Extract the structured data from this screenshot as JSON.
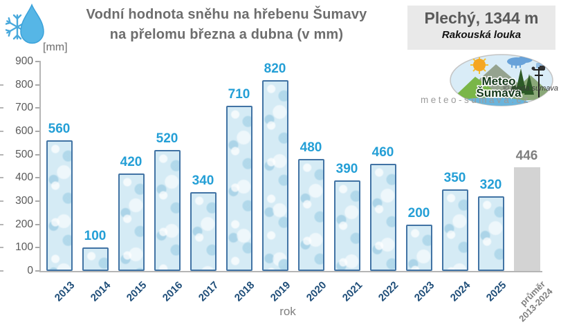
{
  "header": {
    "station": "Plechý, 1344 m",
    "location": "Rakouská louka",
    "logo": {
      "line1": "Meteo",
      "line2": "Šumava"
    },
    "copyright": "© jenda.sumava",
    "website": "meteo-sumava.cz"
  },
  "chart_data": {
    "type": "bar",
    "title_line1": "Vodní hodnota sněhu na hřebenu Šumavy",
    "title_line2": "na přelomu března a dubna (v mm)",
    "unit_label": "[mm]",
    "xlabel": "rok",
    "ylim": [
      0,
      900
    ],
    "yticks": [
      900,
      800,
      700,
      600,
      500,
      400,
      300,
      200,
      100,
      0
    ],
    "grid": "off",
    "categories": [
      "2013",
      "2014",
      "2015",
      "2016",
      "2017",
      "2018",
      "2019",
      "2020",
      "2021",
      "2022",
      "2023",
      "2024",
      "2025"
    ],
    "values": [
      560,
      100,
      420,
      520,
      340,
      710,
      820,
      480,
      390,
      460,
      200,
      350,
      320
    ],
    "average_bar": {
      "label_line1": "průměr",
      "label_line2": "2013-2024",
      "value": 446
    },
    "colors": {
      "title": "#6d6d6d",
      "value_label": "#249fd6",
      "xtick": "#1f4e79",
      "ytick": "#595959",
      "bar_border": "#4173a4",
      "bar_fill": "#d5ebf5",
      "avg_fill": "#d3d3d3",
      "avg_label": "#7f7f7f",
      "axis": "#b5b5b5"
    }
  }
}
